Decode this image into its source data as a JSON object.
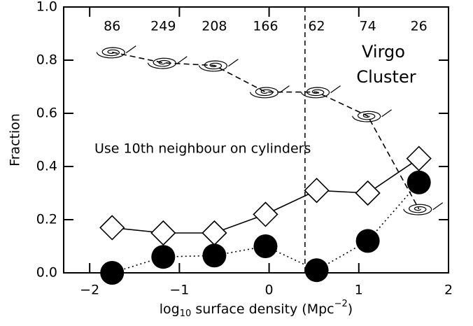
{
  "chart_data": {
    "type": "line",
    "y_label": "Fraction",
    "x_label": {
      "a": "log",
      "sub": "10",
      "b": " surface density (Mpc",
      "sup": "−2",
      "c": ")"
    },
    "x": [
      -1.75,
      -1.18,
      -0.61,
      -0.04,
      0.53,
      1.1,
      1.67
    ],
    "counts": [
      86,
      249,
      208,
      166,
      62,
      74,
      26
    ],
    "series": [
      {
        "color": "#000000",
        "marker": "spiral",
        "line": "dashed",
        "values": [
          0.83,
          0.79,
          0.78,
          0.68,
          0.68,
          0.59,
          0.24
        ]
      },
      {
        "color": "#000000",
        "marker": "diamond",
        "line": "solid",
        "values": [
          0.17,
          0.15,
          0.15,
          0.22,
          0.31,
          0.3,
          0.43
        ]
      },
      {
        "color": "#000000",
        "marker": "circle",
        "line": "dotted",
        "values": [
          0.0,
          0.06,
          0.065,
          0.1,
          0.01,
          0.12,
          0.34
        ]
      }
    ],
    "vline": 0.4,
    "annotations": [
      "Virgo",
      "Cluster",
      "Use 10th neighbour on cylinders"
    ],
    "xlim": [
      -2.29,
      2
    ],
    "ylim": [
      0,
      1
    ],
    "xticks": [
      {
        "value": -2,
        "label": "−2"
      },
      {
        "value": -1,
        "label": "−1"
      },
      0,
      1,
      2
    ],
    "yticks": [
      {
        "value": 0,
        "label": "0.0"
      },
      0.2,
      0.4,
      0.6,
      0.8,
      {
        "value": 1,
        "label": "1.0"
      }
    ]
  }
}
